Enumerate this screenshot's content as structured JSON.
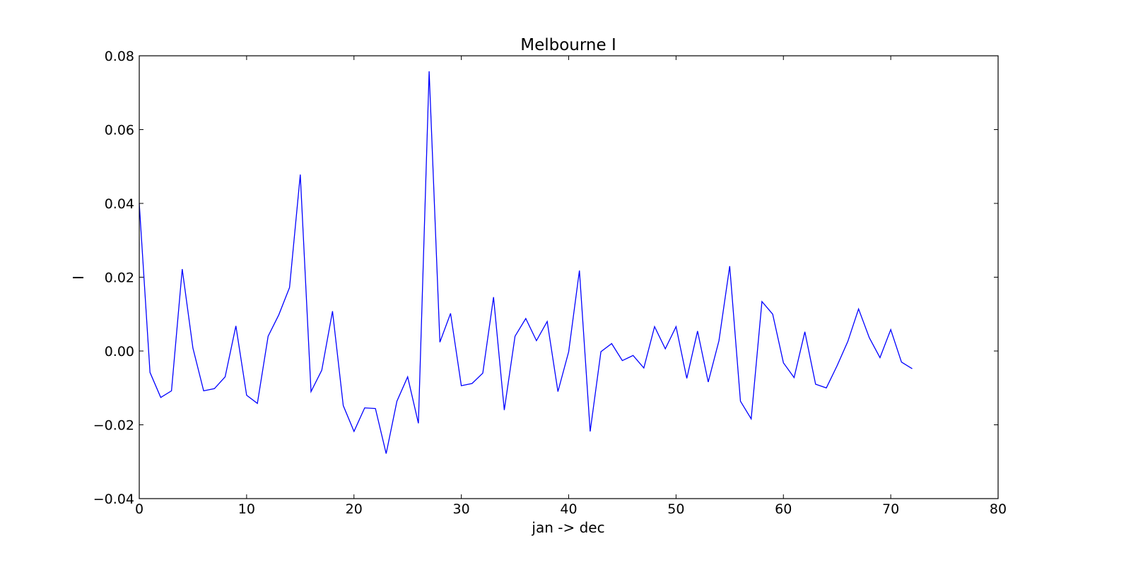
{
  "chart_data": {
    "type": "line",
    "title": "Melbourne I",
    "xlabel": "jan -> dec",
    "ylabel": "I",
    "xlim": [
      0,
      80
    ],
    "ylim": [
      -0.04,
      0.08
    ],
    "x_ticks": [
      0,
      10,
      20,
      30,
      40,
      50,
      60,
      70,
      80
    ],
    "x_tick_labels": [
      "0",
      "10",
      "20",
      "30",
      "40",
      "50",
      "60",
      "70",
      "80"
    ],
    "y_ticks": [
      -0.04,
      -0.02,
      0.0,
      0.02,
      0.04,
      0.06,
      0.08
    ],
    "y_tick_labels": [
      "−0.04",
      "−0.02",
      "0.00",
      "0.02",
      "0.04",
      "0.06",
      "0.08"
    ],
    "grid": false,
    "legend": "none",
    "series": [
      {
        "color": "#0000ff",
        "x": [
          0,
          1,
          2,
          3,
          4,
          5,
          6,
          7,
          8,
          9,
          10,
          11,
          12,
          13,
          14,
          15,
          16,
          17,
          18,
          19,
          20,
          21,
          22,
          23,
          24,
          25,
          26,
          27,
          28,
          29,
          30,
          31,
          32,
          33,
          34,
          35,
          36,
          37,
          38,
          39,
          40,
          41,
          42,
          43,
          44,
          45,
          46,
          47,
          48,
          49,
          50,
          51,
          52,
          53,
          54,
          55,
          56,
          57,
          58,
          59,
          60,
          61,
          62,
          63,
          64,
          65,
          66,
          67,
          68,
          69,
          70,
          71,
          72
        ],
        "y": [
          0.04,
          -0.0058,
          -0.0126,
          -0.0108,
          0.0222,
          0.0008,
          -0.0108,
          -0.0102,
          -0.007,
          0.0068,
          -0.012,
          -0.0142,
          0.004,
          0.0098,
          0.0172,
          0.0478,
          -0.011,
          -0.0052,
          0.0108,
          -0.0148,
          -0.0218,
          -0.0154,
          -0.0156,
          -0.0278,
          -0.0136,
          -0.007,
          -0.0196,
          0.0758,
          0.0024,
          0.0102,
          -0.0094,
          -0.0088,
          -0.006,
          0.0146,
          -0.016,
          0.004,
          0.0088,
          0.0028,
          0.008,
          -0.011,
          -0.0002,
          0.0218,
          -0.0218,
          -0.0002,
          0.002,
          -0.0026,
          -0.0012,
          -0.0046,
          0.0066,
          0.0006,
          0.0066,
          -0.0074,
          0.0054,
          -0.0084,
          0.0028,
          0.023,
          -0.0136,
          -0.0184,
          0.0134,
          0.01,
          -0.0032,
          -0.0072,
          0.0052,
          -0.009,
          -0.01,
          -0.004,
          0.0026,
          0.0114,
          0.0036,
          -0.0018,
          0.0058,
          -0.003,
          -0.0048
        ]
      }
    ]
  }
}
